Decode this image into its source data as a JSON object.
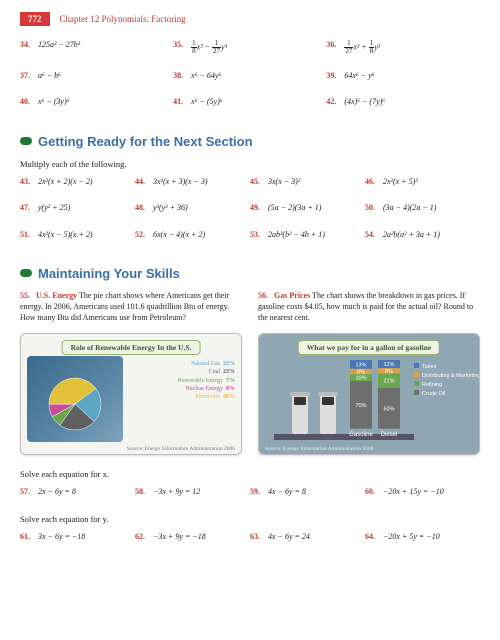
{
  "header": {
    "page_number": "772",
    "chapter": "Chapter 12 Polynomials: Factoring"
  },
  "rowA": [
    {
      "num": "34.",
      "expr": "125a³ − 27b³"
    },
    {
      "num": "35.",
      "expr_html": "<span class='frac'><span class='n'>1</span><span class='d'>8</span></span><i>x</i>³ − <span class='frac'><span class='n'>1</span><span class='d'>27</span></span><i>y</i>³"
    },
    {
      "num": "36.",
      "expr_html": "<span class='frac'><span class='n'>1</span><span class='d'>27</span></span><i>x</i>³ + <span class='frac'><span class='n'>1</span><span class='d'>8</span></span><i>y</i>³"
    }
  ],
  "rowB": [
    {
      "num": "37.",
      "expr": "a⁶ − b⁶"
    },
    {
      "num": "38.",
      "expr": "x⁶ − 64y⁶"
    },
    {
      "num": "39.",
      "expr": "64x⁶ − y⁶"
    }
  ],
  "rowC": [
    {
      "num": "40.",
      "expr": "x⁶ − (3y)⁶"
    },
    {
      "num": "41.",
      "expr": "x⁶ − (5y)⁶"
    },
    {
      "num": "42.",
      "expr": "(4x)⁶ − (7y)⁶"
    }
  ],
  "section1": {
    "title": "Getting Ready for the Next Section",
    "instruction": "Multiply each of the following."
  },
  "rowD": [
    {
      "num": "43.",
      "expr": "2x²(x + 2)(x − 2)"
    },
    {
      "num": "44.",
      "expr": "3x²(x + 3)(x − 3)"
    },
    {
      "num": "45.",
      "expr": "3x(x − 3)²"
    },
    {
      "num": "46.",
      "expr": "2x²(x + 5)²"
    }
  ],
  "rowE": [
    {
      "num": "47.",
      "expr": "y(y² + 25)"
    },
    {
      "num": "48.",
      "expr": "y³(y² + 36)"
    },
    {
      "num": "49.",
      "expr": "(5a − 2)(3a + 1)"
    },
    {
      "num": "50.",
      "expr": "(3a − 4)(2a − 1)"
    }
  ],
  "rowF": [
    {
      "num": "51.",
      "expr": "4x²(x − 5)(x + 2)"
    },
    {
      "num": "52.",
      "expr": "6x(x − 4)(x + 2)"
    },
    {
      "num": "53.",
      "expr": "2ab³(b² − 4b + 1)"
    },
    {
      "num": "54.",
      "expr": "2a²b(a² + 3a + 1)"
    }
  ],
  "section2": {
    "title": "Maintaining Your Skills"
  },
  "wp55": {
    "num": "55.",
    "title": "U.S. Energy",
    "text": "  The pie chart shows where Americans get their energy. In 2006, Americans used 101.6 quadrillion Btu of energy. How many Btu did Americans use from Petroleum?"
  },
  "wp56": {
    "num": "56.",
    "title": "Gas Prices",
    "text": "  The chart shows the breakdown in gas prices. If gasoline costs $4.05, how much is paid for the actual oil? Round to the nearest cent."
  },
  "chart1": {
    "title": "Role of Renewable Energy In the U.S.",
    "bg_left": "#5b87a6",
    "source": "Source: Energy Information Administration 2006",
    "slices": [
      {
        "label": "Natural Gas",
        "value": "23%",
        "color": "#5aa6c4"
      },
      {
        "label": "Coal",
        "value": "23%",
        "color": "#5f5f5f"
      },
      {
        "label": "Renewable Energy",
        "value": "7%",
        "color": "#6aa84f"
      },
      {
        "label": "Nuclear Energy",
        "value": "8%",
        "color": "#c94c9a"
      },
      {
        "label": "Petroleum",
        "value": "40%",
        "color": "#e2c23a"
      }
    ],
    "pie_rotation": -40
  },
  "chart2": {
    "title": "What we pay for in a gallon of gasoline",
    "bg": "#8fa7b3",
    "source": "Source: Energy Information Administration 2008",
    "gasoline": {
      "label": "Gasoline",
      "taxes": "13%",
      "dist": "8%",
      "refine": "10%",
      "oil": "70%"
    },
    "diesel": {
      "label": "Diesel",
      "taxes": "12%",
      "dist": "8%",
      "refine": "21%",
      "oil": "60%"
    },
    "legend": [
      {
        "label": "Taxes",
        "color": "#4a78b5"
      },
      {
        "label": "Distributing & Marketing",
        "color": "#d6a14a"
      },
      {
        "label": "Refining",
        "color": "#6aa84f"
      },
      {
        "label": "Crude Oil",
        "color": "#6e6e6e"
      }
    ]
  },
  "instr_x": "Solve each equation for x.",
  "rowG": [
    {
      "num": "57.",
      "expr": "2x − 6y = 8"
    },
    {
      "num": "58.",
      "expr": "−3x + 9y = 12"
    },
    {
      "num": "59.",
      "expr": "4x − 6y = 8"
    },
    {
      "num": "60.",
      "expr": "−20x + 15y = −10"
    }
  ],
  "instr_y": "Solve each equation for y.",
  "rowH": [
    {
      "num": "61.",
      "expr": "3x − 6y = −18"
    },
    {
      "num": "62.",
      "expr": "−3x + 9y = −18"
    },
    {
      "num": "63.",
      "expr": "4x − 6y = 24"
    },
    {
      "num": "64.",
      "expr": "−20x + 5y = −10"
    }
  ]
}
